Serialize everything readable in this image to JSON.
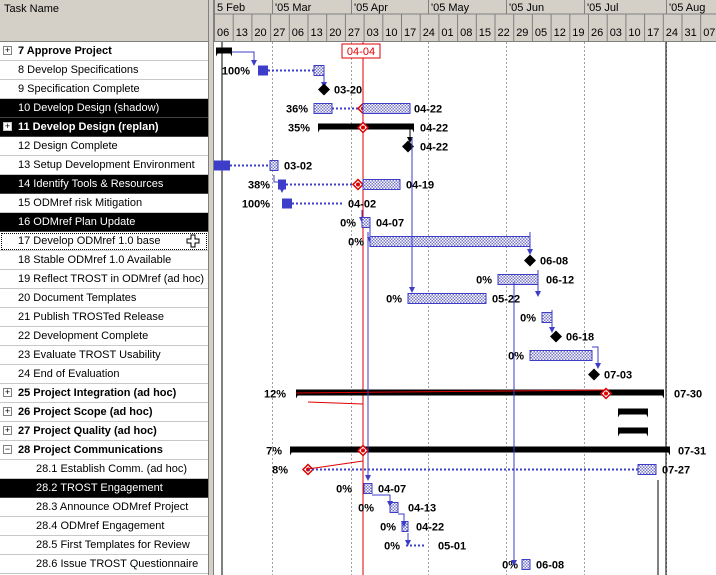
{
  "task_header": "Task Name",
  "timeline": {
    "month_labels": [
      "5 Feb",
      "'05 Mar",
      "'05 Apr",
      "'05 May",
      "'05 Jun",
      "'05 Jul",
      "'05 Aug"
    ],
    "day_labels": [
      "06",
      "13",
      "20",
      "27",
      "06",
      "13",
      "20",
      "27",
      "03",
      "10",
      "17",
      "24",
      "01",
      "08",
      "15",
      "22",
      "29",
      "05",
      "12",
      "19",
      "26",
      "03",
      "10",
      "17",
      "24",
      "31",
      "07"
    ],
    "status_date": "04-04"
  },
  "tasks": [
    {
      "label": "7 Approve Project",
      "indent": 1,
      "summary": true,
      "expander": "+",
      "selected": false
    },
    {
      "label": "8 Develop Specifications",
      "indent": 2,
      "summary": false,
      "selected": false
    },
    {
      "label": "9 Specification Complete",
      "indent": 2,
      "summary": false,
      "selected": false
    },
    {
      "label": "10 Develop Design (shadow)",
      "indent": 2,
      "summary": false,
      "selected": true
    },
    {
      "label": "11 Develop Design (replan)",
      "indent": 1,
      "summary": true,
      "expander": "+",
      "selected": true
    },
    {
      "label": "12 Design Complete",
      "indent": 2,
      "summary": false,
      "selected": false
    },
    {
      "label": "13 Setup Development Environment",
      "indent": 2,
      "summary": false,
      "selected": false
    },
    {
      "label": "14 Identify Tools & Resources",
      "indent": 2,
      "summary": false,
      "selected": true
    },
    {
      "label": "15 ODMref risk Mitigation",
      "indent": 2,
      "summary": false,
      "selected": false
    },
    {
      "label": "16 ODMref Plan Update",
      "indent": 2,
      "summary": false,
      "selected": true
    },
    {
      "label": "17 Develop ODMref 1.0 base",
      "indent": 2,
      "summary": false,
      "selected": false,
      "focused": true
    },
    {
      "label": "18 Stable ODMref 1.0 Available",
      "indent": 2,
      "summary": false,
      "selected": false
    },
    {
      "label": "19 Reflect TROST in ODMref (ad hoc)",
      "indent": 2,
      "summary": false,
      "selected": false
    },
    {
      "label": "20 Document Templates",
      "indent": 2,
      "summary": false,
      "selected": false
    },
    {
      "label": "21 Publish TROSTed Release",
      "indent": 2,
      "summary": false,
      "selected": false
    },
    {
      "label": "22 Development Complete",
      "indent": 2,
      "summary": false,
      "selected": false
    },
    {
      "label": "23 Evaluate TROST Usability",
      "indent": 2,
      "summary": false,
      "selected": false
    },
    {
      "label": "24 End of Evaluation",
      "indent": 2,
      "summary": false,
      "selected": false
    },
    {
      "label": "25 Project Integration (ad hoc)",
      "indent": 1,
      "summary": true,
      "expander": "+",
      "selected": false
    },
    {
      "label": "26 Project Scope (ad hoc)",
      "indent": 1,
      "summary": true,
      "expander": "+",
      "selected": false
    },
    {
      "label": "27 Project Quality (ad hoc)",
      "indent": 1,
      "summary": true,
      "expander": "+",
      "selected": false
    },
    {
      "label": "28 Project Communications",
      "indent": 1,
      "summary": true,
      "expander": "−",
      "selected": false
    },
    {
      "label": "28.1 Establish Comm. (ad hoc)",
      "indent": 3,
      "summary": false,
      "selected": false
    },
    {
      "label": "28.2 TROST Engagement",
      "indent": 3,
      "summary": false,
      "selected": true
    },
    {
      "label": "28.3 Announce ODMref Project",
      "indent": 3,
      "summary": false,
      "selected": false
    },
    {
      "label": "28.4 ODMref Engagement",
      "indent": 3,
      "summary": false,
      "selected": false
    },
    {
      "label": "28.5 First Templates for Review",
      "indent": 3,
      "summary": false,
      "selected": false
    },
    {
      "label": "28.6 Issue TROST Questionnaire",
      "indent": 3,
      "summary": false,
      "selected": false
    }
  ],
  "gantt": [
    {
      "percent": "",
      "end_label": ""
    },
    {
      "percent": "100%",
      "end_label": ""
    },
    {
      "percent": "",
      "end_label": "03-20"
    },
    {
      "percent": "36%",
      "end_label": "04-22"
    },
    {
      "percent": "35%",
      "end_label": "04-22"
    },
    {
      "percent": "",
      "end_label": "04-22"
    },
    {
      "percent": "",
      "end_label": "03-02"
    },
    {
      "percent": "38%",
      "end_label": "04-19"
    },
    {
      "percent": "100%",
      "end_label": "04-02"
    },
    {
      "percent": "0%",
      "end_label": "04-07"
    },
    {
      "percent": "0%",
      "end_label": ""
    },
    {
      "percent": "",
      "end_label": "06-08"
    },
    {
      "percent": "0%",
      "end_label": "06-12"
    },
    {
      "percent": "0%",
      "end_label": "05-22"
    },
    {
      "percent": "0%",
      "end_label": ""
    },
    {
      "percent": "",
      "end_label": "06-18"
    },
    {
      "percent": "0%",
      "end_label": ""
    },
    {
      "percent": "",
      "end_label": "07-03"
    },
    {
      "percent": "12%",
      "end_label": "07-30"
    },
    {
      "percent": "",
      "end_label": ""
    },
    {
      "percent": "",
      "end_label": ""
    },
    {
      "percent": "7%",
      "end_label": "07-31"
    },
    {
      "percent": "8%",
      "end_label": "07-27"
    },
    {
      "percent": "0%",
      "end_label": "04-07"
    },
    {
      "percent": "0%",
      "end_label": "04-13"
    },
    {
      "percent": "0%",
      "end_label": "04-22"
    },
    {
      "percent": "0%",
      "end_label": "05-01"
    },
    {
      "percent": "0%",
      "end_label": "06-08"
    }
  ],
  "colors": {
    "selection": "#000000",
    "progress_bar": "#3d3dc8",
    "status_line": "#e00000",
    "milestone": "#000000",
    "panel_bg": "#d4d0c8"
  }
}
